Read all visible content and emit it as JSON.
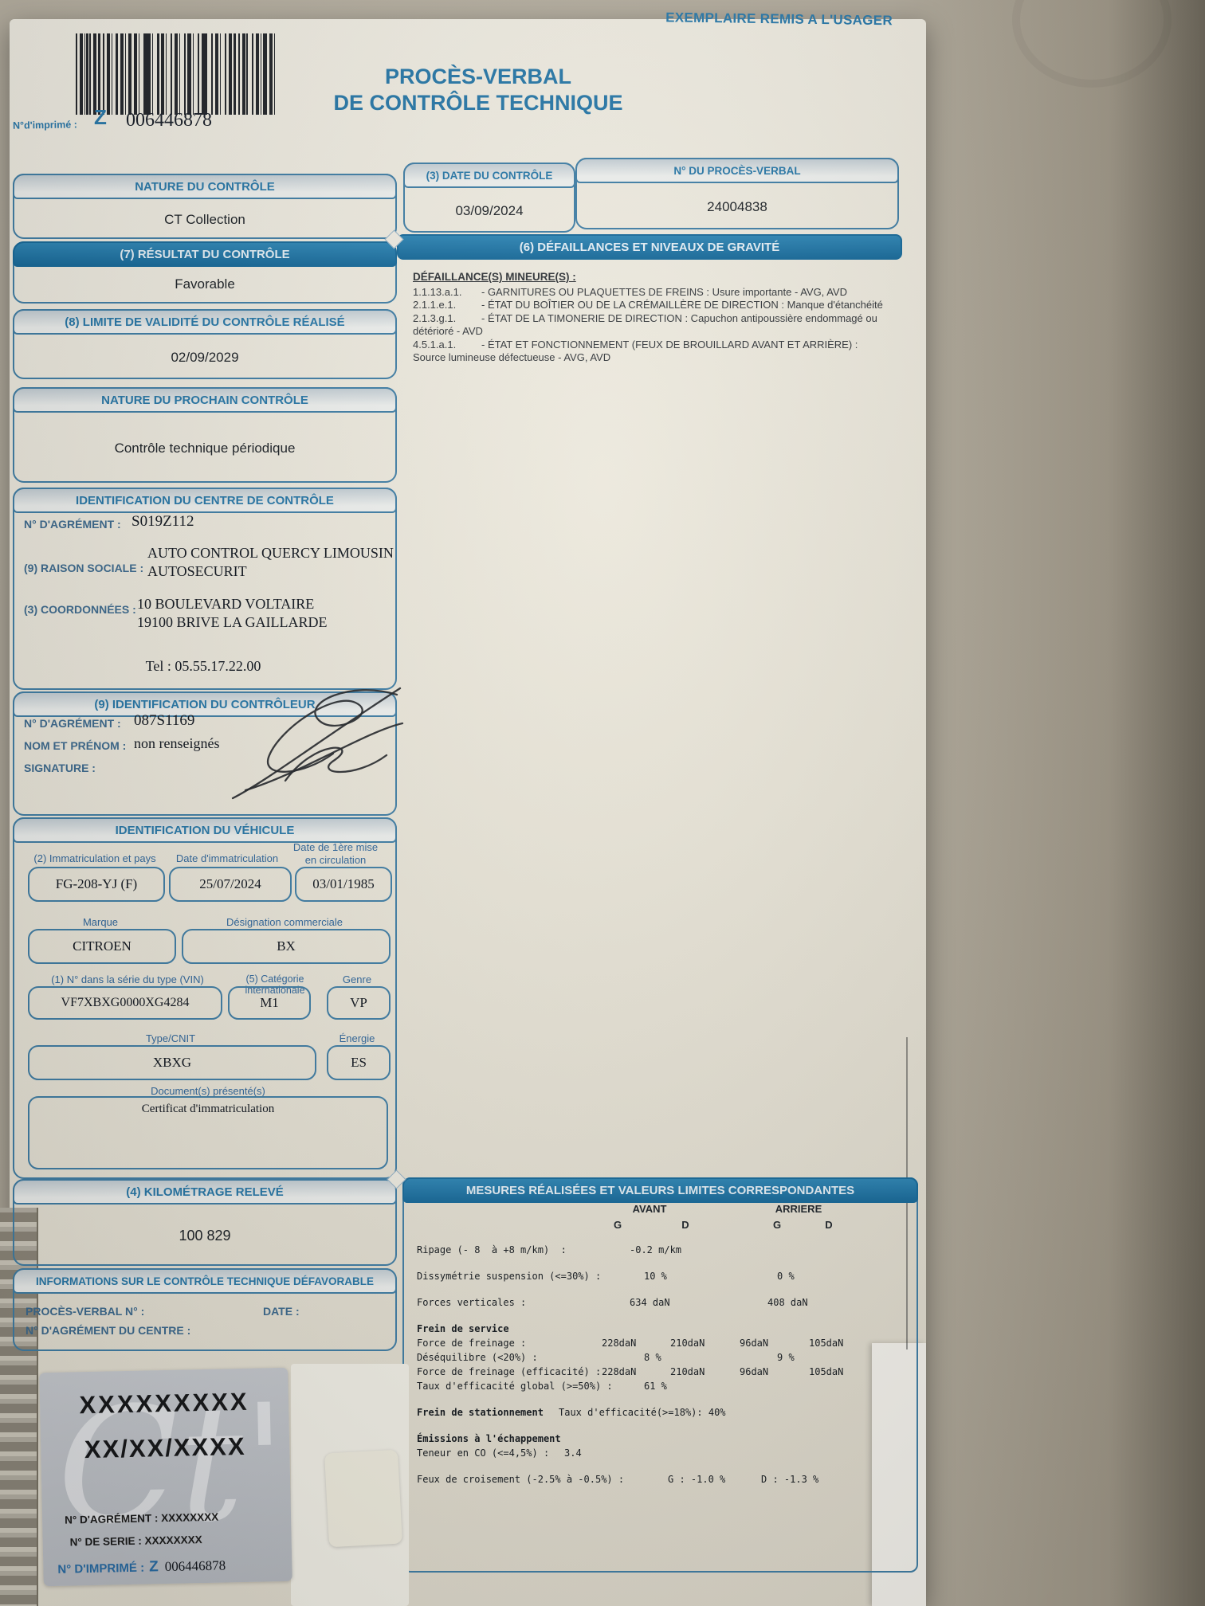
{
  "page": {
    "copy_note": "EXEMPLAIRE REMIS A L'USAGER",
    "print_label": "N°d'imprimé :",
    "print_prefix": "Z",
    "print_number": "006446878",
    "title1": "PROCÈS-VERBAL",
    "title2": "DE CONTRÔLE TECHNIQUE"
  },
  "nature_controle": {
    "title": "NATURE DU CONTRÔLE",
    "value": "CT Collection"
  },
  "date_controle": {
    "title": "(3) DATE DU CONTRÔLE",
    "value": "03/09/2024"
  },
  "numero_pv": {
    "title": "N° DU PROCÈS-VERBAL",
    "value": "24004838"
  },
  "resultat": {
    "title": "(7) RÉSULTAT DU CONTRÔLE",
    "value": "Favorable"
  },
  "validite": {
    "title": "(8) LIMITE DE VALIDITÉ DU CONTRÔLE RÉALISÉ",
    "value": "02/09/2029"
  },
  "prochain_controle": {
    "title": "NATURE DU PROCHAIN CONTRÔLE",
    "value": "Contrôle technique périodique"
  },
  "centre": {
    "title": "IDENTIFICATION DU CENTRE DE CONTRÔLE",
    "agrement_label": "N° D'AGRÉMENT :",
    "agrement": "S019Z112",
    "raison_label": "(9) RAISON SOCIALE :",
    "raison1": "AUTO CONTROL QUERCY LIMOUSIN",
    "raison2": "AUTOSECURIT",
    "coordonnees_label": "(3) COORDONNÉES :",
    "adresse1": "10 BOULEVARD VOLTAIRE",
    "adresse2": "19100 BRIVE LA GAILLARDE",
    "tel": "Tel : 05.55.17.22.00"
  },
  "controleur": {
    "title": "(9) IDENTIFICATION DU CONTRÔLEUR",
    "agrement_label": "N° D'AGRÉMENT :",
    "agrement": "087S1169",
    "nom_label": "NOM ET PRÉNOM :",
    "nom": "non renseignés",
    "signature_label": "SIGNATURE :"
  },
  "vehicule": {
    "title": "IDENTIFICATION DU VÉHICULE",
    "immat_label": "(2) Immatriculation et pays",
    "immat": "FG-208-YJ (F)",
    "date_immat_label": "Date d'immatriculation",
    "date_immat": "25/07/2024",
    "date_circ_label1": "Date de 1ère mise",
    "date_circ_label2": "en circulation",
    "date_circ": "03/01/1985",
    "marque_label": "Marque",
    "marque": "CITROEN",
    "designation_label": "Désignation commerciale",
    "designation": "BX",
    "vin_label": "(1) N° dans la série du type (VIN)",
    "vin": "VF7XBXG0000XG4284",
    "categorie_label": "(5) Catégorie internationale",
    "categorie": "M1",
    "genre_label": "Genre",
    "genre": "VP",
    "type_label": "Type/CNIT",
    "type": "XBXG",
    "energie_label": "Énergie",
    "energie": "ES",
    "documents_label": "Document(s) présenté(s)",
    "documents": "Certificat d'immatriculation"
  },
  "kilometrage": {
    "title": "(4) KILOMÉTRAGE RELEVÉ",
    "value": "100 829"
  },
  "infos_defavorable": {
    "title": "INFORMATIONS SUR LE CONTRÔLE TECHNIQUE DÉFAVORABLE",
    "pv_label": "PROCÈS-VERBAL N° :",
    "date_label": "DATE :",
    "agrement_label": "N° D'AGRÉMENT DU CENTRE :"
  },
  "defaillances": {
    "title": "(6) DÉFAILLANCES ET NIVEAUX DE GRAVITÉ",
    "subtitle": "DÉFAILLANCE(S) MINEURE(S) :",
    "items": [
      {
        "code": "1.1.13.a.1.",
        "text": "- GARNITURES OU PLAQUETTES DE FREINS : Usure importante  - AVG, AVD"
      },
      {
        "code": "2.1.1.e.1.",
        "text": "- ÉTAT DU BOÎTIER OU DE LA CRÉMAILLÈRE DE DIRECTION : Manque d'étanchéité"
      },
      {
        "code": "2.1.3.g.1.",
        "text": "- ÉTAT DE LA TIMONERIE DE DIRECTION : Capuchon antipoussière endommagé ou détérioré - AVD"
      },
      {
        "code": "4.5.1.a.1.",
        "text": "- ÉTAT ET FONCTIONNEMENT (FEUX DE BROUILLARD AVANT ET ARRIÈRE) : Source lumineuse défectueuse - AVG, AVD"
      }
    ]
  },
  "mesures": {
    "title": "MESURES RÉALISÉES ET VALEURS LIMITES CORRESPONDANTES",
    "col_avant": "AVANT",
    "col_arriere": "ARRIERE",
    "col_g": "G",
    "col_d": "D",
    "rows": [
      {
        "label": "Ripage (- 8  à +8 m/km)  :",
        "cells": [
          {
            "p": "a",
            "t": "-0.2 m/km"
          }
        ]
      },
      {
        "label": "Dissymétrie suspension (<=30%) :",
        "group_start": true,
        "cells": [
          {
            "p": "a2",
            "t": "10 %"
          },
          {
            "p": "r2",
            "t": "0 %"
          }
        ]
      },
      {
        "label": "Forces verticales :",
        "group_start": true,
        "cells": [
          {
            "p": "a",
            "t": "634 daN"
          },
          {
            "p": "r",
            "t": "408 daN"
          }
        ]
      },
      {
        "label": "Frein de service",
        "bold": true,
        "group_start": true,
        "cells": []
      },
      {
        "label": "Force de freinage :",
        "cells": [
          {
            "p": "ag",
            "t": "228daN"
          },
          {
            "p": "ad",
            "t": "210daN"
          },
          {
            "p": "rg",
            "t": "96daN"
          },
          {
            "p": "rd",
            "t": "105daN"
          }
        ]
      },
      {
        "label": "Déséquilibre (<20%) :",
        "cells": [
          {
            "p": "a2",
            "t": "8 %"
          },
          {
            "p": "r2",
            "t": "9 %"
          }
        ]
      },
      {
        "label": "Force de freinage (efficacité) :",
        "cells": [
          {
            "p": "ag",
            "t": "228daN"
          },
          {
            "p": "ad",
            "t": "210daN"
          },
          {
            "p": "rg",
            "t": "96daN"
          },
          {
            "p": "rd",
            "t": "105daN"
          }
        ]
      },
      {
        "label": "Taux d'efficacité global (>=50%) :",
        "cells": [
          {
            "p": "a2",
            "t": "61 %"
          }
        ]
      },
      {
        "label": "Frein de stationnement",
        "bold": true,
        "group_start": true,
        "cells": [
          {
            "p": "s",
            "t": "Taux d'efficacité(>=18%): 40%"
          }
        ]
      },
      {
        "label": "Émissions à l'échappement",
        "bold": true,
        "group_start": true,
        "cells": []
      },
      {
        "label": "Teneur en CO (<=4,5%) :",
        "cells": [
          {
            "p": "v",
            "t": "3.4"
          }
        ]
      },
      {
        "label": "Feux de croisement (-2.5% à -0.5%) :",
        "group_start": true,
        "cells": [
          {
            "p": "fg",
            "t": "G : -1.0 %"
          },
          {
            "p": "fd",
            "t": "D : -1.3 %"
          }
        ]
      }
    ]
  },
  "sticker": {
    "watermark": "Ct'",
    "line1": "XXXXXXXXX",
    "line2": "XX/XX/XXXX",
    "agrement": "N° D'AGRÉMENT : XXXXXXXX",
    "serie": "N° DE SERIE : XXXXXXXX",
    "imprime_label": "N° D'IMPRIMÉ :",
    "imprime_prefix": "Z",
    "imprime_number": "006446878"
  }
}
